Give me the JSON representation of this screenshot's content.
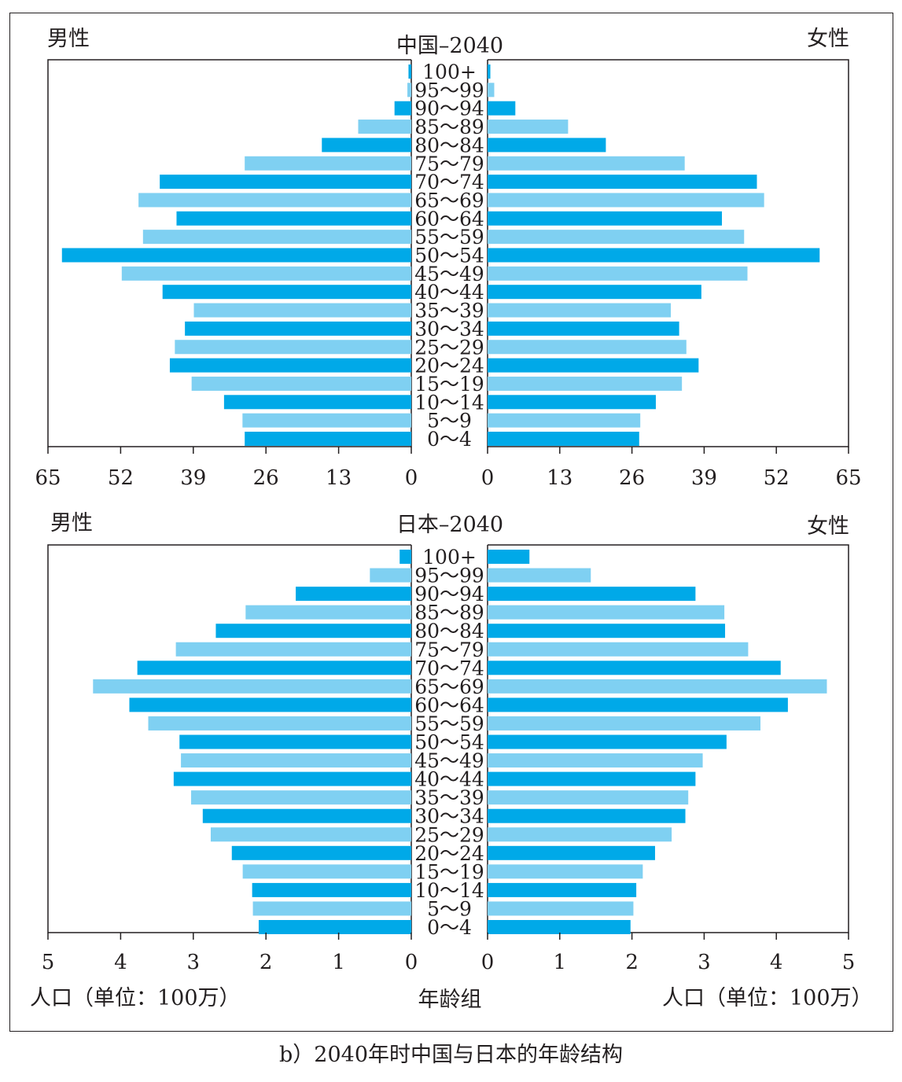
{
  "caption": "b）2040年时中国与日本的年龄结构",
  "labels": {
    "male": "男性",
    "female": "女性",
    "unit": "人口（单位：100万）",
    "age_axis": "年龄组"
  },
  "colors": {
    "dark_bar": "#00a9e8",
    "light_bar": "#7fd0f2",
    "axis": "#231f20"
  },
  "age_groups": [
    "100+",
    "95～99",
    "90～94",
    "85～89",
    "80～84",
    "75～79",
    "70～74",
    "65～69",
    "60～64",
    "55～59",
    "50～54",
    "45～49",
    "40～44",
    "35～39",
    "30～34",
    "25～29",
    "20～24",
    "15～19",
    "10～14",
    "5～9",
    "0～4"
  ],
  "chart_data": [
    {
      "type": "bar",
      "orientation": "horizontal-pyramid",
      "title": "中国–2040",
      "xlim": [
        0,
        65
      ],
      "ticks": [
        0,
        13,
        26,
        39,
        52,
        65
      ],
      "categories": [
        "100+",
        "95～99",
        "90～94",
        "85～89",
        "80～84",
        "75～79",
        "70～74",
        "65～69",
        "60～64",
        "55～59",
        "50～54",
        "45～49",
        "40～44",
        "35～39",
        "30～34",
        "25～29",
        "20～24",
        "15～19",
        "10～14",
        "5～9",
        "0～4"
      ],
      "series": [
        {
          "name": "男性",
          "values": [
            0.5,
            0.7,
            3.0,
            9.5,
            16.0,
            29.8,
            45.0,
            48.8,
            42.0,
            48.0,
            62.5,
            51.8,
            44.5,
            38.9,
            40.5,
            42.3,
            43.2,
            39.3,
            33.5,
            30.2,
            29.8
          ]
        },
        {
          "name": "女性",
          "values": [
            0.5,
            1.2,
            5.0,
            14.5,
            21.3,
            35.5,
            48.5,
            49.8,
            42.2,
            46.2,
            59.8,
            46.8,
            38.5,
            33.0,
            34.5,
            35.8,
            38.0,
            35.0,
            30.3,
            27.5,
            27.3
          ]
        }
      ]
    },
    {
      "type": "bar",
      "orientation": "horizontal-pyramid",
      "title": "日本–2040",
      "xlim": [
        0,
        5
      ],
      "ticks": [
        0,
        1,
        2,
        3,
        4,
        5
      ],
      "categories": [
        "100+",
        "95～99",
        "90～94",
        "85～89",
        "80～84",
        "75～79",
        "70～74",
        "65～69",
        "60～64",
        "55～59",
        "50～54",
        "45～49",
        "40～44",
        "35～39",
        "30～34",
        "25～29",
        "20～24",
        "15～19",
        "10～14",
        "5～9",
        "0～4"
      ],
      "series": [
        {
          "name": "男性",
          "values": [
            0.16,
            0.57,
            1.59,
            2.28,
            2.69,
            3.24,
            3.77,
            4.38,
            3.88,
            3.62,
            3.19,
            3.17,
            3.27,
            3.03,
            2.87,
            2.76,
            2.47,
            2.32,
            2.19,
            2.18,
            2.1
          ]
        },
        {
          "name": "女性",
          "values": [
            0.58,
            1.43,
            2.88,
            3.28,
            3.29,
            3.61,
            4.06,
            4.7,
            4.16,
            3.78,
            3.31,
            2.98,
            2.88,
            2.78,
            2.74,
            2.55,
            2.32,
            2.15,
            2.06,
            2.02,
            1.98
          ]
        }
      ]
    }
  ]
}
